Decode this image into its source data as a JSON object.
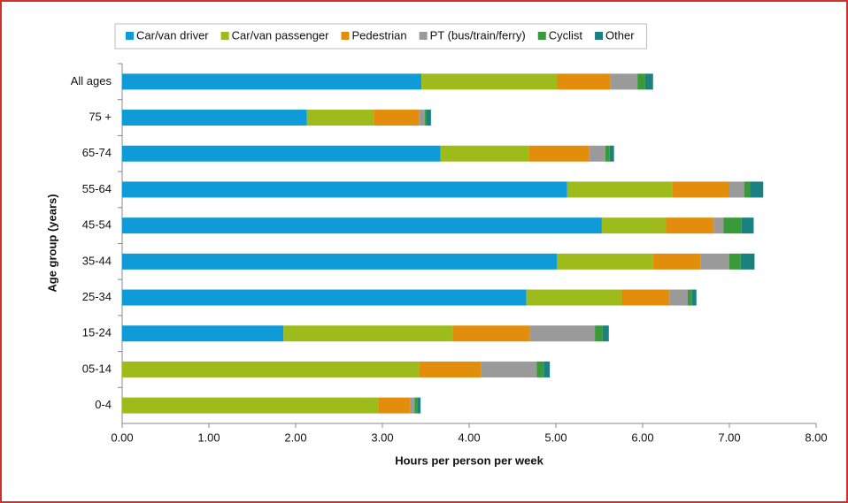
{
  "chart_data": {
    "type": "stacked-bar-horizontal",
    "x_label": "Hours per person per week",
    "y_label": "Age group (years)",
    "categories": [
      "All ages",
      "75 +",
      "65-74",
      "55-64",
      "45-54",
      "35-44",
      "25-34",
      "15-24",
      "05-14",
      "0-4"
    ],
    "series": [
      {
        "name": "Car/van driver",
        "color": "#0f9ad8",
        "values": [
          3.45,
          2.13,
          3.67,
          5.13,
          5.53,
          5.01,
          4.66,
          1.86,
          0,
          0
        ]
      },
      {
        "name": "Car/van passenger",
        "color": "#9dbb1b",
        "values": [
          1.56,
          0.77,
          1.02,
          1.21,
          0.74,
          1.11,
          1.1,
          1.95,
          3.42,
          2.95
        ]
      },
      {
        "name": "Pedestrian",
        "color": "#e28d0c",
        "values": [
          0.62,
          0.52,
          0.69,
          0.66,
          0.55,
          0.55,
          0.55,
          0.89,
          0.72,
          0.37
        ]
      },
      {
        "name": "PT (bus/train/ferry)",
        "color": "#9a9a9a",
        "values": [
          0.31,
          0.07,
          0.19,
          0.17,
          0.11,
          0.33,
          0.21,
          0.75,
          0.64,
          0.05
        ]
      },
      {
        "name": "Cyclist",
        "color": "#3a9a3a",
        "values": [
          0.09,
          0.02,
          0.05,
          0.07,
          0.21,
          0.13,
          0.05,
          0.09,
          0.08,
          0.03
        ]
      },
      {
        "name": "Other",
        "color": "#1a8080",
        "values": [
          0.09,
          0.05,
          0.05,
          0.15,
          0.14,
          0.16,
          0.05,
          0.07,
          0.07,
          0.04
        ]
      }
    ],
    "xlim": [
      0,
      8
    ],
    "xticks": [
      {
        "value": 0,
        "label": "0.00"
      },
      {
        "value": 1,
        "label": "1.00"
      },
      {
        "value": 2,
        "label": "2.00"
      },
      {
        "value": 3,
        "label": "3.00"
      },
      {
        "value": 4,
        "label": "4.00"
      },
      {
        "value": 5,
        "label": "5.00"
      },
      {
        "value": 6,
        "label": "6.00"
      },
      {
        "value": 7,
        "label": "7.00"
      },
      {
        "value": 8,
        "label": "8.00"
      }
    ],
    "legend": "top"
  }
}
